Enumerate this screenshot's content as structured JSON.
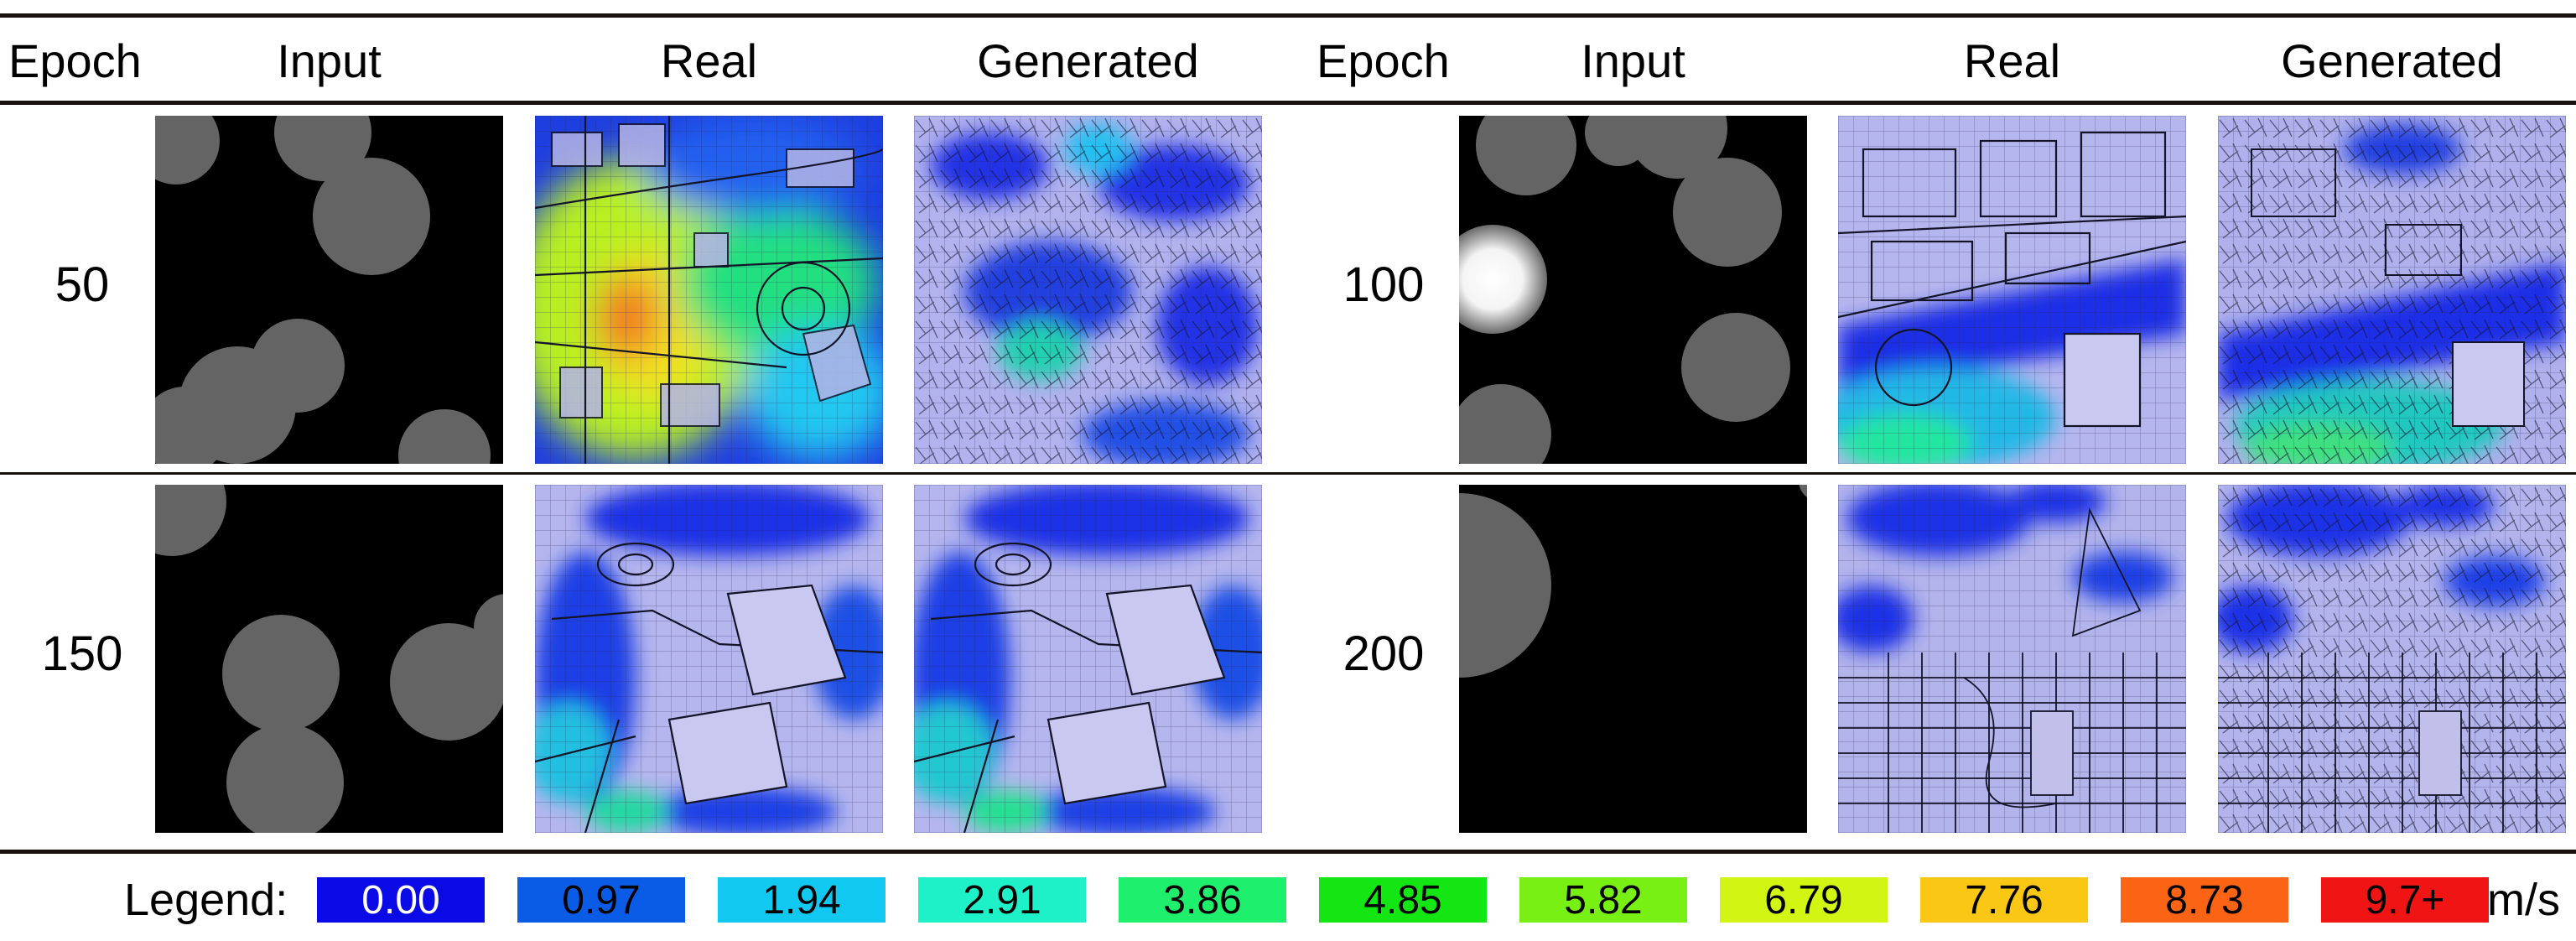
{
  "columns": {
    "left": [
      "Epoch",
      "Input",
      "Real",
      "Generated"
    ],
    "right": [
      "Epoch",
      "Input",
      "Real",
      "Generated"
    ]
  },
  "rows": [
    {
      "left_epoch": "50",
      "right_epoch": "100"
    },
    {
      "left_epoch": "150",
      "right_epoch": "200"
    }
  ],
  "legend": {
    "label": "Legend:",
    "unit": "m/s",
    "items": [
      {
        "value": "0.00",
        "color": "#0a0ae6",
        "text_color": "#ffffff"
      },
      {
        "value": "0.97",
        "color": "#0a5ce6",
        "text_color": "#000000"
      },
      {
        "value": "1.94",
        "color": "#10c8f0",
        "text_color": "#000000"
      },
      {
        "value": "2.91",
        "color": "#1ef0c8",
        "text_color": "#000000"
      },
      {
        "value": "3.86",
        "color": "#1ef06e",
        "text_color": "#000000"
      },
      {
        "value": "4.85",
        "color": "#14e614",
        "text_color": "#000000"
      },
      {
        "value": "5.82",
        "color": "#78f014",
        "text_color": "#000000"
      },
      {
        "value": "6.79",
        "color": "#d2f514",
        "text_color": "#000000"
      },
      {
        "value": "7.76",
        "color": "#fac814",
        "text_color": "#000000"
      },
      {
        "value": "8.73",
        "color": "#fa6414",
        "text_color": "#000000"
      },
      {
        "value": "9.7+",
        "color": "#f01414",
        "text_color": "#000000"
      }
    ]
  }
}
